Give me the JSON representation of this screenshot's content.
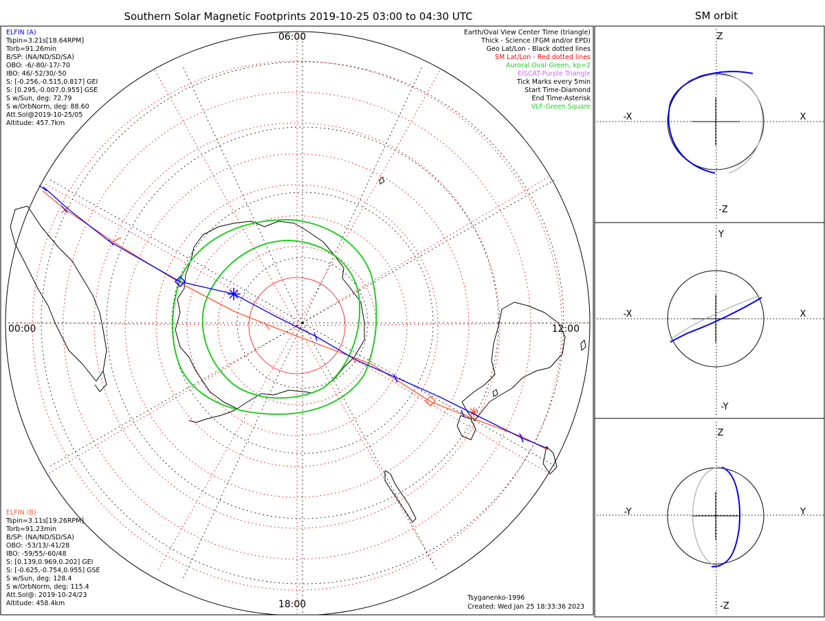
{
  "main": {
    "title": "Southern Solar Magnetic Footprints 2019-10-25 03:00 to 04:30 UTC"
  },
  "sm_orbit": {
    "title": "SM orbit"
  },
  "clock_labels": {
    "top": "06:00",
    "left": "00:00",
    "right": "12:00",
    "bottom": "18:00"
  },
  "elfin_a": {
    "lines": [
      "ELFIN (A)",
      "Tspin=3.21s[18.64RPM]",
      "Torb=91.26min",
      "B/SP: (NA/ND/SD/SA)",
      "OBO: -6/-80/-17/-70",
      "IBO: 46/-52/30/-50",
      "S: [-0.256,-0.515,0.817] GEI",
      "S: [0.295,-0.007,0.955] GSE",
      "S w/Sun, deg: 72.79",
      "S w/OrbNorm, deg: 88.60",
      "Att.Sol@2019-10-25/05",
      "Altitude: 457.7km"
    ]
  },
  "elfin_b": {
    "lines": [
      "ELFIN (B)",
      "Tspin=3.11s[19.26RPM]",
      "Torb=91.23min",
      "B/SP: (NA/ND/SD/SA)",
      "OBO: -53/13/-41/28",
      "IBO: -59/55/-60/48",
      "S: [0.139,0.969,0.202] GEI",
      "S: [-0.625,-0.754,0.955] GSE",
      "S w/Sun, deg: 128.4",
      "S w/OrbNorm, deg: 115.4",
      "Att.Sol@: 2019-10-24/23",
      "Altitude: 458.4km"
    ]
  },
  "legend": [
    {
      "text": "Earth/Oval View Center Time (triangle)",
      "color": "#000000"
    },
    {
      "text": "Thick - Science (FGM and/or EPD)",
      "color": "#000000"
    },
    {
      "text": "Geo Lat/Lon - Black dotted lines",
      "color": "#000000"
    },
    {
      "text": "SM Lat/Lon - Red dotted lines",
      "color": "#ff0000"
    },
    {
      "text": "Auroral Oval-Green, kp=2",
      "color": "#00cc00"
    },
    {
      "text": "EISCAT-Purple Triangle",
      "color": "#cc66ff"
    },
    {
      "text": "Tick Marks every 5min",
      "color": "#000000"
    },
    {
      "text": "Start Time-Diamond",
      "color": "#000000"
    },
    {
      "text": "End Time-Asterisk",
      "color": "#000000"
    },
    {
      "text": "VLF-Green Square",
      "color": "#00cc00"
    }
  ],
  "footer": {
    "model": "Tsyganenko-1996",
    "created": "Created: Wed Jan 25 18:33:36 2023"
  },
  "panels": [
    {
      "top": "Z",
      "bottom": "-Z",
      "left": "-X",
      "right": "X"
    },
    {
      "top": "Y",
      "bottom": "-Y",
      "left": "-X",
      "right": "X"
    },
    {
      "top": "Z",
      "bottom": "-Z",
      "left": "-Y",
      "right": "Y"
    }
  ],
  "colors": {
    "elfin_a": "#0000ee",
    "elfin_b": "#ff5533",
    "oval": "#22cc22",
    "sm_grid": "#ff0000",
    "geo_grid": "#000000",
    "orbit_gray": "#aaaaaa"
  },
  "chart_data": {
    "type": "polar-map",
    "hemisphere": "southern",
    "time_range": "2019-10-25 03:00 to 04:30 UTC",
    "sm_lat_circles_deg": [
      -40,
      -50,
      -60,
      -70,
      -80
    ],
    "series": [
      {
        "name": "ELFIN (A)",
        "color": "#0000ee"
      },
      {
        "name": "ELFIN (B)",
        "color": "#ff5533"
      }
    ]
  }
}
